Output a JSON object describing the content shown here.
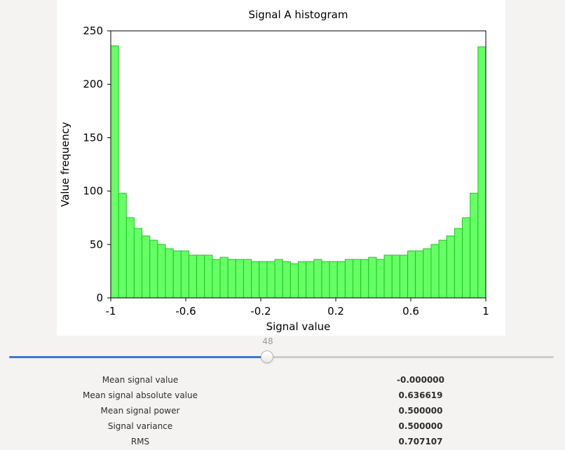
{
  "chart_data": {
    "type": "bar",
    "title": "Signal A histogram",
    "xlabel": "Signal value",
    "ylabel": "Value frequency",
    "xlim": [
      -1,
      1
    ],
    "ylim": [
      0,
      250
    ],
    "xticks": [
      "-1",
      "-0.6",
      "-0.2",
      "0.2",
      "0.6",
      "1"
    ],
    "xtick_values": [
      -1,
      -0.6,
      -0.2,
      0.2,
      0.6,
      1
    ],
    "yticks": [
      "0",
      "50",
      "100",
      "150",
      "200",
      "250"
    ],
    "ytick_values": [
      0,
      50,
      100,
      150,
      200,
      250
    ],
    "bins": 48,
    "values": [
      236,
      98,
      75,
      65,
      58,
      54,
      50,
      46,
      44,
      44,
      40,
      40,
      40,
      36,
      38,
      36,
      36,
      36,
      34,
      34,
      34,
      36,
      34,
      32,
      34,
      34,
      36,
      34,
      34,
      34,
      36,
      36,
      36,
      38,
      36,
      40,
      40,
      40,
      44,
      44,
      46,
      50,
      54,
      58,
      65,
      75,
      98,
      235
    ],
    "grid": false,
    "bar_color": "#66ff66",
    "bar_edge_color": "#1fc41f"
  },
  "slider": {
    "value": 48,
    "value_label": "48",
    "fill_fraction": 0.474,
    "accent": "#3a78d6"
  },
  "stats": [
    {
      "label": "Mean signal value",
      "value": "-0.000000"
    },
    {
      "label": "Mean signal absolute value",
      "value": "0.636619"
    },
    {
      "label": "Mean signal power",
      "value": "0.500000"
    },
    {
      "label": "Signal variance",
      "value": "0.500000"
    },
    {
      "label": "RMS",
      "value": "0.707107"
    }
  ]
}
